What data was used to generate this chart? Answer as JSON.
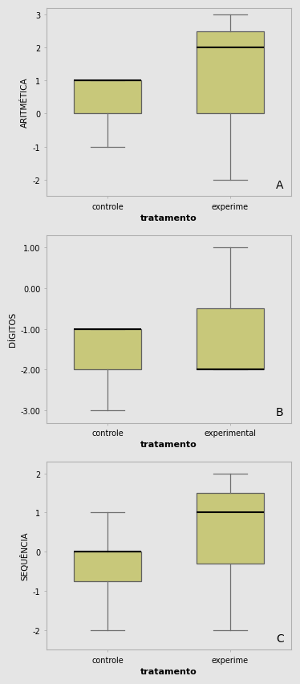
{
  "plots": [
    {
      "label": "A",
      "ylabel": "ARITMÉTICA",
      "xlabel": "tratamento",
      "xtick_labels": [
        "controle",
        "experime"
      ],
      "ylim": [
        -2.5,
        3.2
      ],
      "yticks": [
        -2,
        -1,
        0,
        1,
        2,
        3
      ],
      "ytick_labels": [
        "-2",
        "-1",
        "0",
        "1",
        "2",
        "3"
      ],
      "boxes": [
        {
          "q1": 0.0,
          "median": 1.0,
          "q3": 1.0,
          "whislo": -1.0,
          "whishi": 1.0
        },
        {
          "q1": 0.0,
          "median": 2.0,
          "q3": 2.5,
          "whislo": -2.0,
          "whishi": 3.0
        }
      ]
    },
    {
      "label": "B",
      "ylabel": "DÍGITOS",
      "xlabel": "tratamento",
      "xtick_labels": [
        "controle",
        "experimental"
      ],
      "ylim": [
        -3.3,
        1.3
      ],
      "yticks": [
        -3.0,
        -2.0,
        -1.0,
        0.0,
        1.0
      ],
      "ytick_labels": [
        "-3.00",
        "-2.00",
        "-1.00",
        "0.00",
        "1.00"
      ],
      "boxes": [
        {
          "q1": -2.0,
          "median": -1.0,
          "q3": -1.0,
          "whislo": -3.0,
          "whishi": -1.0
        },
        {
          "q1": -2.0,
          "median": -2.0,
          "q3": -0.5,
          "whislo": -2.0,
          "whishi": 1.0
        }
      ]
    },
    {
      "label": "C",
      "ylabel": "SEQUÊNCIA",
      "xlabel": "tratamento",
      "xtick_labels": [
        "controle",
        "experime"
      ],
      "ylim": [
        -2.5,
        2.3
      ],
      "yticks": [
        -2,
        -1,
        0,
        1,
        2
      ],
      "ytick_labels": [
        "-2",
        "-1",
        "0",
        "1",
        "2"
      ],
      "boxes": [
        {
          "q1": -0.75,
          "median": 0.0,
          "q3": 0.0,
          "whislo": -2.0,
          "whishi": 1.0
        },
        {
          "q1": -0.3,
          "median": 1.0,
          "q3": 1.5,
          "whislo": -2.0,
          "whishi": 2.0
        }
      ]
    }
  ],
  "box_color": "#c8c87a",
  "box_edge_color": "#606060",
  "median_color": "#000000",
  "whisker_color": "#707070",
  "cap_color": "#707070",
  "bg_color": "#e5e5e5",
  "fig_bg_color": "#e5e5e5",
  "box_width": 0.55,
  "xlabel_fontsize": 8,
  "ylabel_fontsize": 7.5,
  "tick_fontsize": 7,
  "label_fontsize": 10
}
